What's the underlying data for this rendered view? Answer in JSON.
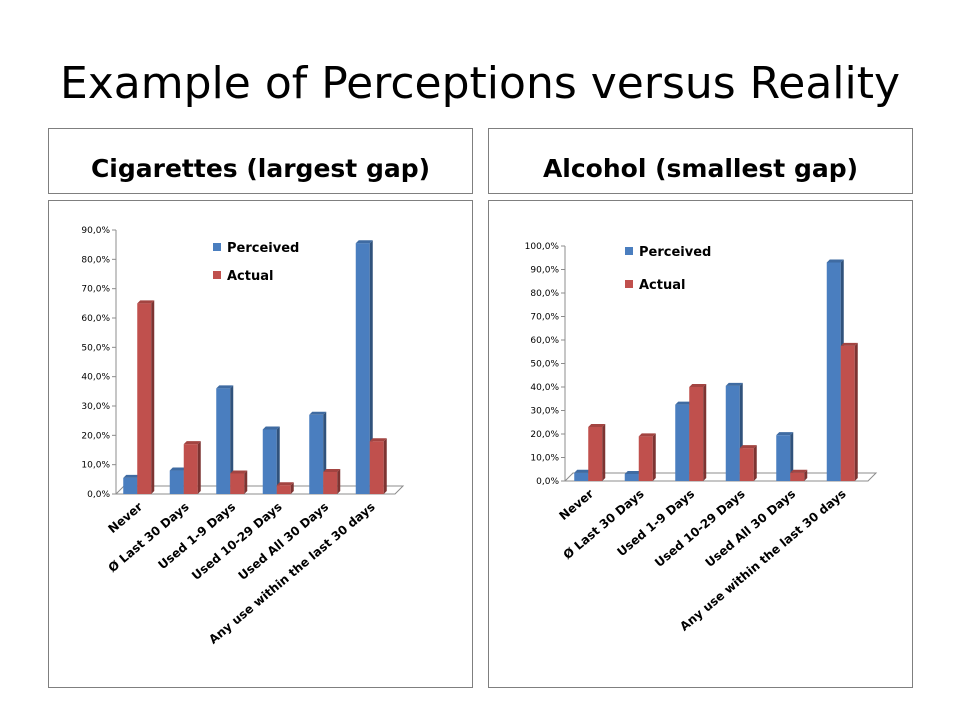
{
  "slide": {
    "title": "Example of Perceptions versus Reality"
  },
  "colors": {
    "perceived": "#4a7ebf",
    "actual": "#c0504d"
  },
  "chart_data": [
    {
      "type": "bar",
      "title": "Cigarettes (largest gap)",
      "categories": [
        "Never",
        "Ø Last 30 Days",
        "Used 1-9 Days",
        "Used 10-29 Days",
        "Used All 30 Days",
        "Any use within the last 30 days"
      ],
      "series": [
        {
          "name": "Perceived",
          "values": [
            5.5,
            8.0,
            36.0,
            22.0,
            27.0,
            85.5
          ]
        },
        {
          "name": "Actual",
          "values": [
            65.0,
            17.0,
            7.0,
            3.0,
            7.5,
            18.0
          ]
        }
      ],
      "ylim": [
        0,
        90
      ],
      "yticks": [
        "0,0%",
        "10,0%",
        "20,0%",
        "30,0%",
        "40,0%",
        "50,0%",
        "60,0%",
        "70,0%",
        "80,0%",
        "90,0%"
      ],
      "legend": "top-right"
    },
    {
      "type": "bar",
      "title": "Alcohol (smallest gap)",
      "categories": [
        "Never",
        "Ø Last 30 Days",
        "Used 1-9 Days",
        "Used 10-29 Days",
        "Used All 30 Days",
        "Any use within the last 30 days"
      ],
      "series": [
        {
          "name": "Perceived",
          "values": [
            3.5,
            3.0,
            32.5,
            40.5,
            19.5,
            93.0
          ]
        },
        {
          "name": "Actual",
          "values": [
            23.0,
            19.0,
            40.0,
            14.0,
            3.5,
            57.5
          ]
        }
      ],
      "ylim": [
        0,
        100
      ],
      "yticks": [
        "0,0%",
        "10,0%",
        "20,0%",
        "30,0%",
        "40,0%",
        "50,0%",
        "60,0%",
        "70,0%",
        "80,0%",
        "90,0%",
        "100,0%"
      ],
      "legend": "top-right"
    }
  ]
}
